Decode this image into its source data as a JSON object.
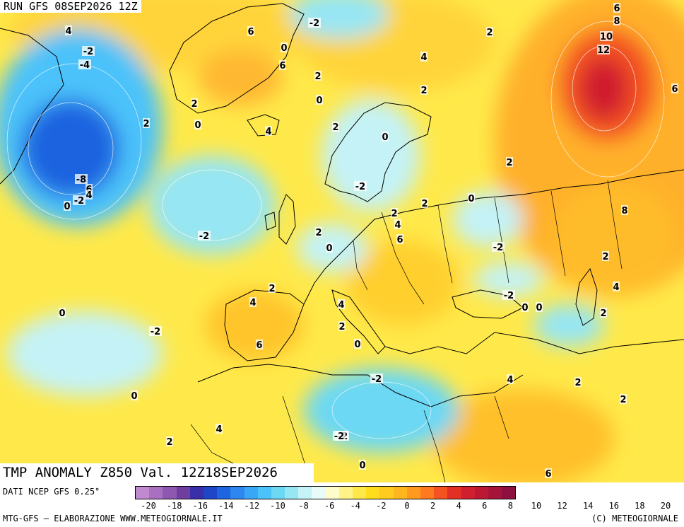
{
  "header": {
    "run": "RUN GFS 08SEP2026 12Z"
  },
  "footer": {
    "title": "TMP ANOMALY Z850 Val. 12Z18SEP2026"
  },
  "source": {
    "label": "DATI NCEP GFS 0.25°"
  },
  "credits": {
    "left": "MTG-GFS — ELABORAZIONE WWW.METEOGIORNALE.IT",
    "right": "(C) METEOGIORNALE"
  },
  "colors": {
    "scale": [
      "#c08ad0",
      "#a970c0",
      "#8e58b0",
      "#6f3fa0",
      "#3a2fa8",
      "#2046c8",
      "#1f64e0",
      "#2e86f0",
      "#39a6f6",
      "#4cc2fa",
      "#6cd8f4",
      "#96e6f4",
      "#c4f2f6",
      "#e8fbf8",
      "#fffccc",
      "#fff38a",
      "#ffe94a",
      "#ffdc1e",
      "#ffcb1e",
      "#ffb61e",
      "#ff9a1e",
      "#ff7a1e",
      "#f45220",
      "#e33024",
      "#d01f2e",
      "#bb1834",
      "#a6143a",
      "#8e1040"
    ],
    "land_lines": "#000000",
    "ocean_base": "#ffe93c"
  },
  "legend": {
    "ticks": [
      "-20",
      "-18",
      "-16",
      "-14",
      "-12",
      "-10",
      "-8",
      "-6",
      "-4",
      "-2",
      "0",
      "2",
      "4",
      "6",
      "8",
      "10",
      "12",
      "14",
      "16",
      "18",
      "20"
    ]
  },
  "map_labels": [
    "-2",
    "-4",
    "4",
    "6",
    "0",
    "6",
    "-2",
    "2",
    "2",
    "2",
    "0",
    "2",
    "2",
    "4",
    "0",
    "2",
    "-2",
    "-8",
    "6",
    "4",
    "0",
    "-2",
    "6",
    "8",
    "10",
    "12",
    "6",
    "4",
    "2",
    "0",
    "0",
    "2",
    "-2",
    "-2",
    "2",
    "0",
    "2",
    "4",
    "6",
    "-2",
    "-2",
    "4",
    "2",
    "0",
    "0",
    "-2",
    "0",
    "4",
    "2",
    "6",
    "2",
    "0",
    "-2",
    "4",
    "-2",
    "2",
    "0",
    "2",
    "4",
    "2",
    "-2",
    "0",
    "2",
    "6",
    "4",
    "8"
  ]
}
